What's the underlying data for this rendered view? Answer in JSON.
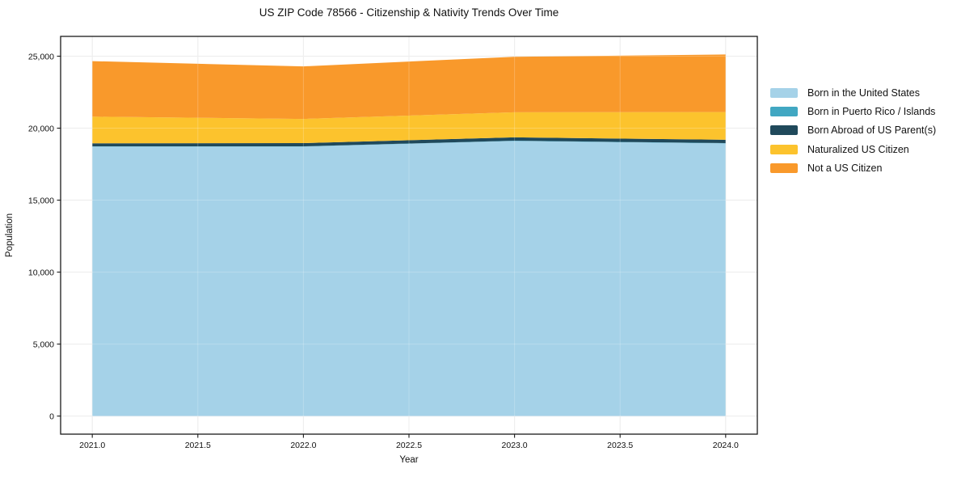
{
  "title": "US ZIP Code 78566 - Citizenship & Nativity Trends Over Time",
  "chart_data": {
    "type": "area",
    "stacked": true,
    "title": "US ZIP Code 78566 - Citizenship & Nativity Trends Over Time",
    "xlabel": "Year",
    "ylabel": "Population",
    "x": [
      2021,
      2022,
      2023,
      2024
    ],
    "series": [
      {
        "name": "Born in the United States",
        "color": "#A5D2E8",
        "values": [
          18720,
          18720,
          19110,
          18940
        ]
      },
      {
        "name": "Born in Puerto Rico / Islands",
        "color": "#41A7C2",
        "values": [
          20,
          20,
          20,
          20
        ]
      },
      {
        "name": "Born Abroad of US Parent(s)",
        "color": "#20495B",
        "values": [
          210,
          220,
          230,
          230
        ]
      },
      {
        "name": "Naturalized US Citizen",
        "color": "#FCC32D",
        "values": [
          1850,
          1680,
          1740,
          1930
        ]
      },
      {
        "name": "Not a US Citizen",
        "color": "#F9992B",
        "values": [
          3860,
          3650,
          3860,
          4000
        ]
      }
    ],
    "xticks": [
      2021.0,
      2021.5,
      2022.0,
      2022.5,
      2023.0,
      2023.5,
      2024.0
    ],
    "xtick_labels": [
      "2021.0",
      "2021.5",
      "2022.0",
      "2022.5",
      "2023.0",
      "2023.5",
      "2024.0"
    ],
    "yticks": [
      0,
      5000,
      10000,
      15000,
      20000,
      25000
    ],
    "ytick_labels": [
      "0",
      "5,000",
      "10,000",
      "15,000",
      "20,000",
      "25,000"
    ],
    "xlim": [
      2020.85,
      2024.15
    ],
    "ylim": [
      -1256,
      26376
    ],
    "grid": true,
    "legend_position": "right",
    "axis_color": "#1a1a1a",
    "grid_color": "#e7e7e7"
  }
}
